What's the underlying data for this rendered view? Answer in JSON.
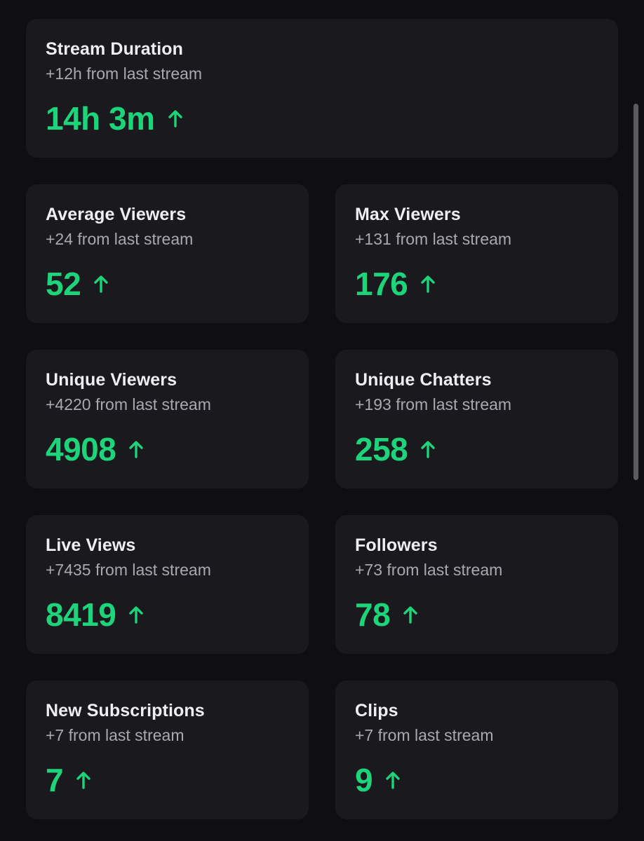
{
  "colors": {
    "background": "#0f0f11",
    "card": "#1a1a1e",
    "title": "#efeff1",
    "subtitle": "#a8a8b0",
    "positive": "#1ed47a"
  },
  "stats": [
    {
      "title": "Stream Duration",
      "change": "+12h from last stream",
      "value": "14h 3m",
      "trend_icon": "arrow-up-icon"
    },
    {
      "title": "Average Viewers",
      "change": "+24 from last stream",
      "value": "52",
      "trend_icon": "arrow-up-icon"
    },
    {
      "title": "Max Viewers",
      "change": "+131 from last stream",
      "value": "176",
      "trend_icon": "arrow-up-icon"
    },
    {
      "title": "Unique Viewers",
      "change": "+4220 from last stream",
      "value": "4908",
      "trend_icon": "arrow-up-icon"
    },
    {
      "title": "Unique Chatters",
      "change": "+193 from last stream",
      "value": "258",
      "trend_icon": "arrow-up-icon"
    },
    {
      "title": "Live Views",
      "change": "+7435 from last stream",
      "value": "8419",
      "trend_icon": "arrow-up-icon"
    },
    {
      "title": "Followers",
      "change": "+73 from last stream",
      "value": "78",
      "trend_icon": "arrow-up-icon"
    },
    {
      "title": "New Subscriptions",
      "change": "+7 from last stream",
      "value": "7",
      "trend_icon": "arrow-up-icon"
    },
    {
      "title": "Clips",
      "change": "+7 from last stream",
      "value": "9",
      "trend_icon": "arrow-up-icon"
    }
  ]
}
